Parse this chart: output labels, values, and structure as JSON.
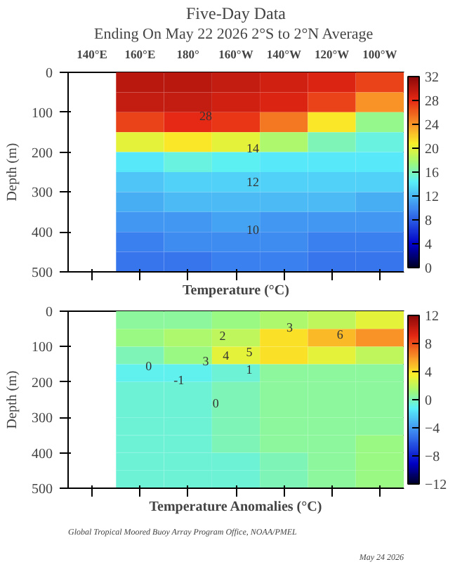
{
  "chart_data": [
    {
      "type": "heatmap",
      "title": "Five-Day Data",
      "subtitle": "Ending On May 22 2026  2°S to 2°N Average",
      "xlabel": "Temperature (°C)",
      "ylabel": "Depth (m)",
      "categories": [
        "140°E",
        "160°E",
        "180°",
        "160°W",
        "140°W",
        "120°W",
        "100°W"
      ],
      "ylim": [
        500,
        0
      ],
      "yticks": [
        0,
        100,
        200,
        300,
        400,
        500
      ],
      "clim": [
        0,
        32
      ],
      "cticks": [
        0,
        4,
        8,
        12,
        16,
        20,
        24,
        28,
        32
      ],
      "grid": false,
      "cells": [
        [
          null,
          30,
          30,
          29.5,
          29,
          28.5,
          27
        ],
        [
          null,
          29.5,
          29.5,
          29,
          28.5,
          27,
          24
        ],
        [
          null,
          27,
          28,
          27.5,
          25,
          21,
          17
        ],
        [
          null,
          20,
          21,
          20,
          18,
          16,
          15
        ],
        [
          null,
          14,
          15,
          14.5,
          14,
          14,
          14
        ],
        [
          null,
          12.5,
          13,
          13,
          13,
          13,
          13
        ],
        [
          null,
          11.5,
          12,
          12,
          12,
          12,
          11.5
        ],
        [
          null,
          10.5,
          10.5,
          11,
          10.5,
          10.5,
          10.5
        ],
        [
          null,
          9.5,
          10,
          10,
          10,
          9.5,
          9.5
        ],
        [
          null,
          9,
          9,
          9.5,
          9.5,
          9,
          9
        ]
      ],
      "annotations": [
        "28",
        "14",
        "12",
        "10"
      ]
    },
    {
      "type": "heatmap",
      "xlabel": "Temperature Anomalies (°C)",
      "ylabel": "Depth (m)",
      "categories": [
        null,
        null,
        null,
        null,
        null,
        null,
        null
      ],
      "tick_labels": "y",
      "ylim": [
        500,
        0
      ],
      "yticks": [
        0,
        100,
        200,
        300,
        400,
        500
      ],
      "clim": [
        -12,
        12
      ],
      "cticks": [
        -12,
        -8,
        -4,
        0,
        4,
        8,
        12
      ],
      "grid": false,
      "cells": [
        [
          null,
          0.5,
          0.5,
          1,
          1.5,
          2,
          3
        ],
        [
          null,
          1,
          1.5,
          2,
          4,
          5,
          6
        ],
        [
          null,
          0,
          1,
          3,
          4,
          3,
          2
        ],
        [
          null,
          -1,
          -1,
          -0.5,
          0.5,
          0.5,
          0.5
        ],
        [
          null,
          -0.5,
          -0.5,
          0,
          0.5,
          0.5,
          0.5
        ],
        [
          null,
          -0.5,
          -0.5,
          0,
          0.5,
          0.5,
          0.5
        ],
        [
          null,
          -0.5,
          -0.5,
          0,
          0.5,
          0.5,
          0.5
        ],
        [
          null,
          -0.5,
          -0.5,
          0,
          0.5,
          0.5,
          1
        ],
        [
          null,
          -0.5,
          -0.5,
          -0.5,
          0,
          0.5,
          1
        ],
        [
          null,
          -0.5,
          -0.5,
          -0.5,
          0,
          0.5,
          1
        ]
      ],
      "annotations": [
        "3",
        "2",
        "6",
        "5",
        "4",
        "3",
        "1",
        "0",
        "-1",
        "0",
        "Global Tropical Moored Buoy Array Program Office, NOAA/PMEL",
        "May 24 2026"
      ]
    }
  ]
}
